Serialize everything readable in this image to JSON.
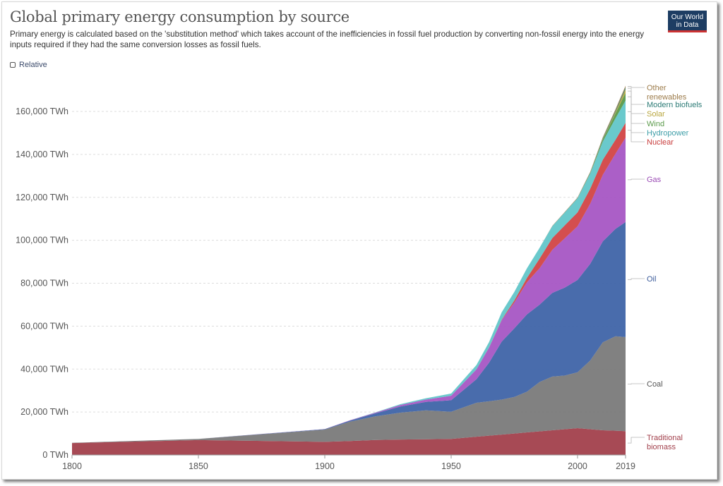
{
  "header": {
    "title": "Global primary energy consumption by source",
    "subtitle": "Primary energy is calculated based on the 'substitution method' which takes account of the inefficiencies in fossil fuel production by converting non-fossil energy into the energy inputs required if they had the same conversion losses as fossil fuels.",
    "logo_line1": "Our World",
    "logo_line2": "in Data",
    "relative_label": "Relative"
  },
  "chart_data": {
    "type": "area",
    "stacked": true,
    "x": [
      1800,
      1850,
      1900,
      1910,
      1920,
      1930,
      1940,
      1950,
      1960,
      1965,
      1970,
      1975,
      1980,
      1985,
      1990,
      1995,
      2000,
      2005,
      2010,
      2015,
      2019
    ],
    "xlim": [
      1800,
      2019
    ],
    "x_ticks": [
      "1800",
      "1850",
      "1900",
      "1950",
      "2000",
      "2019"
    ],
    "ylim": [
      0,
      170000
    ],
    "y_ticks": [
      "0 TWh",
      "20,000 TWh",
      "40,000 TWh",
      "60,000 TWh",
      "80,000 TWh",
      "100,000 TWh",
      "120,000 TWh",
      "140,000 TWh",
      "160,000 TWh"
    ],
    "grid": "horizontal dashed",
    "legend": "right",
    "series": [
      {
        "name": "Traditional biomass",
        "color": "#a2404c",
        "values": [
          5556,
          6944,
          6111,
          6500,
          7000,
          7200,
          7300,
          7500,
          8500,
          9000,
          9500,
          10000,
          10500,
          11000,
          11500,
          12000,
          12500,
          12000,
          11500,
          11300,
          11100
        ]
      },
      {
        "name": "Coal",
        "color": "#7a7a7a",
        "values": [
          97,
          556,
          5728,
          9000,
          11000,
          12500,
          13500,
          12600,
          15800,
          16000,
          16300,
          17000,
          19000,
          23000,
          25000,
          25000,
          26000,
          32000,
          41000,
          44000,
          43800
        ]
      },
      {
        "name": "Oil",
        "color": "#3f64a8",
        "values": [
          0,
          0,
          181,
          500,
          1400,
          2900,
          3900,
          5400,
          11000,
          18000,
          27000,
          32000,
          36000,
          36000,
          39000,
          41000,
          43000,
          45000,
          47000,
          50000,
          53600
        ]
      },
      {
        "name": "Gas",
        "color": "#a656c4",
        "values": [
          0,
          0,
          64,
          150,
          300,
          700,
          1100,
          2100,
          4600,
          7000,
          10000,
          12000,
          15000,
          17000,
          20000,
          23000,
          25000,
          28000,
          31000,
          35000,
          39300
        ]
      },
      {
        "name": "Nuclear",
        "color": "#d24444",
        "values": [
          0,
          0,
          0,
          0,
          0,
          0,
          0,
          0,
          0,
          100,
          200,
          1000,
          2000,
          4500,
          5500,
          6000,
          6500,
          7000,
          7000,
          6500,
          6900
        ]
      },
      {
        "name": "Hydropower",
        "color": "#62c6c9",
        "values": [
          0,
          0,
          0,
          50,
          150,
          400,
          600,
          1000,
          2000,
          2500,
          3500,
          4000,
          4500,
          5000,
          5500,
          6000,
          6500,
          7000,
          8500,
          10000,
          10400
        ]
      },
      {
        "name": "Wind",
        "color": "#5a9a4a",
        "values": [
          0,
          0,
          0,
          0,
          0,
          0,
          0,
          0,
          0,
          0,
          0,
          0,
          0,
          0,
          10,
          20,
          100,
          300,
          1000,
          2200,
          3500
        ]
      },
      {
        "name": "Solar",
        "color": "#b8a53c",
        "values": [
          0,
          0,
          0,
          0,
          0,
          0,
          0,
          0,
          0,
          0,
          0,
          0,
          0,
          0,
          0,
          0,
          5,
          10,
          100,
          700,
          1800
        ]
      },
      {
        "name": "Modern biofuels",
        "color": "#2b7a75",
        "values": [
          0,
          0,
          0,
          0,
          0,
          0,
          0,
          0,
          0,
          0,
          0,
          0,
          0,
          0,
          80,
          100,
          120,
          250,
          400,
          600,
          800
        ]
      },
      {
        "name": "Other renewables",
        "color": "#9c7b4a",
        "values": [
          0,
          0,
          0,
          0,
          0,
          0,
          0,
          0,
          0,
          0,
          0,
          0,
          0,
          0,
          100,
          150,
          200,
          300,
          500,
          700,
          800
        ]
      }
    ],
    "legend_entries": [
      {
        "text": "Other",
        "text2": "renewables",
        "color": "#9c7b4a"
      },
      {
        "text": "Modern biofuels",
        "color": "#2b7a75"
      },
      {
        "text": "Solar",
        "color": "#b8a53c"
      },
      {
        "text": "Wind",
        "color": "#5a9a4a"
      },
      {
        "text": "Hydropower",
        "color": "#3f9ea8"
      },
      {
        "text": "Nuclear",
        "color": "#c83c3c"
      },
      {
        "text": "Gas",
        "color": "#9a4ab4"
      },
      {
        "text": "Oil",
        "color": "#3a5a9a"
      },
      {
        "text": "Coal",
        "color": "#555555"
      },
      {
        "text": "Traditional",
        "text2": "biomass",
        "color": "#a2404c"
      }
    ]
  }
}
